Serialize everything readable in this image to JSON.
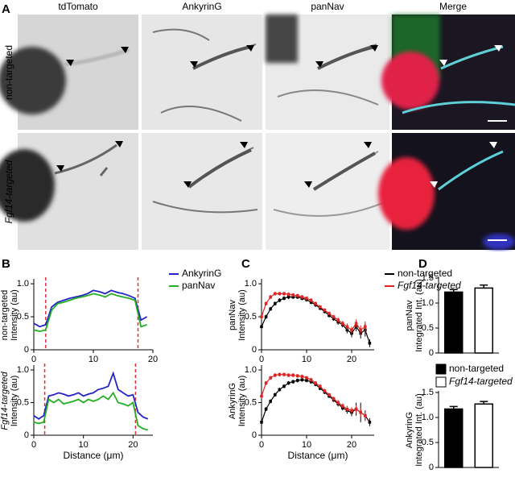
{
  "panels": [
    "A",
    "B",
    "C",
    "D"
  ],
  "panel_a": {
    "columns": [
      {
        "text": "tdTomato",
        "color": "#e8251f"
      },
      {
        "text": "AnkyrinG",
        "color": "#2b2bd6"
      },
      {
        "text": "panNav",
        "color": "#1aa51a"
      },
      {
        "text": "Merge",
        "color": "#000000"
      }
    ],
    "rows": [
      "non-targeted",
      "Fgf14-targeted"
    ]
  },
  "chart_data": [
    {
      "type": "line",
      "ylabel": [
        "non-targeted",
        "Intensity (au)"
      ],
      "xlim": [
        0,
        20
      ],
      "xticks": [
        0,
        10,
        20
      ],
      "ylim": [
        0,
        1.05
      ],
      "yticks": [
        0,
        {
          "value": 0.5,
          "label": "0.5"
        },
        {
          "value": 1,
          "label": "1.0"
        }
      ],
      "legend": true,
      "markers": [
        2,
        17.5
      ],
      "marker_color": "#e03030",
      "x": [
        0,
        1,
        2,
        3,
        4,
        5,
        6,
        7,
        8,
        9,
        10,
        11,
        12,
        13,
        14,
        15,
        16,
        17,
        18,
        19
      ],
      "series": [
        {
          "name": "AnkyrinG",
          "color": "#2323c8",
          "values": [
            0.4,
            0.35,
            0.38,
            0.65,
            0.72,
            0.75,
            0.78,
            0.8,
            0.82,
            0.85,
            0.9,
            0.88,
            0.85,
            0.9,
            0.87,
            0.85,
            0.82,
            0.78,
            0.45,
            0.5
          ]
        },
        {
          "name": "panNav",
          "color": "#22b022",
          "values": [
            0.3,
            0.28,
            0.3,
            0.6,
            0.7,
            0.72,
            0.75,
            0.78,
            0.8,
            0.82,
            0.85,
            0.83,
            0.8,
            0.85,
            0.82,
            0.8,
            0.78,
            0.75,
            0.35,
            0.38
          ]
        }
      ]
    },
    {
      "type": "line",
      "ylabel": [
        "Fgf14-targeted",
        "Intensity (au)"
      ],
      "xlabel": "Distance (μm)",
      "xlim": [
        0,
        24
      ],
      "xticks": [
        0,
        10,
        20
      ],
      "ylim": [
        0,
        1.05
      ],
      "yticks": [
        0,
        {
          "value": 0.5,
          "label": "0.5"
        },
        {
          "value": 1,
          "label": "1.0"
        }
      ],
      "legend": false,
      "markers": [
        2.2,
        20.5
      ],
      "marker_color": "#e03030",
      "x": [
        0,
        1,
        2,
        3,
        4,
        5,
        6,
        7,
        8,
        9,
        10,
        11,
        12,
        13,
        14,
        15,
        16,
        17,
        18,
        19,
        20,
        21,
        22,
        23
      ],
      "series": [
        {
          "name": "AnkyrinG",
          "color": "#2323c8",
          "values": [
            0.3,
            0.25,
            0.3,
            0.6,
            0.62,
            0.65,
            0.63,
            0.6,
            0.62,
            0.65,
            0.6,
            0.63,
            0.65,
            0.7,
            0.72,
            0.75,
            0.95,
            0.7,
            0.65,
            0.6,
            0.62,
            0.35,
            0.28,
            0.25
          ]
        },
        {
          "name": "panNav",
          "color": "#22b022",
          "values": [
            0.2,
            0.18,
            0.2,
            0.55,
            0.5,
            0.55,
            0.48,
            0.5,
            0.52,
            0.55,
            0.5,
            0.55,
            0.52,
            0.55,
            0.6,
            0.55,
            0.65,
            0.5,
            0.48,
            0.45,
            0.5,
            0.15,
            0.1,
            0.08
          ]
        }
      ]
    },
    {
      "type": "line",
      "ylabel": [
        "panNav",
        "Intensity (au)"
      ],
      "xlim": [
        0,
        25
      ],
      "xticks": [
        0,
        10,
        20
      ],
      "ylim": [
        0,
        1.05
      ],
      "yticks": [
        0,
        {
          "value": 0.5,
          "label": "0.5"
        },
        {
          "value": 1,
          "label": "1.0"
        }
      ],
      "legend": true,
      "x": [
        0,
        1,
        2,
        3,
        4,
        5,
        6,
        7,
        8,
        9,
        10,
        11,
        12,
        13,
        14,
        15,
        16,
        17,
        18,
        19,
        20,
        21,
        22,
        23,
        24
      ],
      "series": [
        {
          "name": "non-targeted",
          "color": "#000000",
          "values": [
            0.35,
            0.5,
            0.62,
            0.7,
            0.75,
            0.78,
            0.8,
            0.8,
            0.8,
            0.78,
            0.76,
            0.72,
            0.68,
            0.63,
            0.58,
            0.52,
            0.47,
            0.42,
            0.38,
            0.3,
            0.25,
            0.35,
            0.25,
            0.3,
            0.1
          ],
          "errors": [
            0.03,
            0.03,
            0.03,
            0.03,
            0.03,
            0.03,
            0.03,
            0.03,
            0.03,
            0.03,
            0.03,
            0.03,
            0.03,
            0.03,
            0.03,
            0.03,
            0.03,
            0.04,
            0.04,
            0.05,
            0.06,
            0.07,
            0.08,
            0.1,
            0.06
          ]
        },
        {
          "name": "Fgf14-targeted",
          "color": "#e02424",
          "values": [
            0.5,
            0.7,
            0.8,
            0.85,
            0.85,
            0.85,
            0.84,
            0.83,
            0.82,
            0.8,
            0.78,
            0.75,
            0.7,
            0.65,
            0.6,
            0.55,
            0.5,
            0.45,
            0.4,
            0.35,
            0.3,
            0.4,
            0.3,
            0.35,
            null
          ],
          "errors": [
            0.03,
            0.03,
            0.03,
            0.03,
            0.03,
            0.03,
            0.03,
            0.03,
            0.03,
            0.03,
            0.03,
            0.03,
            0.03,
            0.03,
            0.03,
            0.03,
            0.03,
            0.04,
            0.04,
            0.05,
            0.05,
            0.06,
            0.07,
            0.08,
            null
          ]
        }
      ]
    },
    {
      "type": "line",
      "ylabel": [
        "AnkyrinG",
        "Intensity (au)"
      ],
      "xlabel": "Distance (μm)",
      "xlim": [
        0,
        25
      ],
      "xticks": [
        0,
        10,
        20
      ],
      "ylim": [
        0,
        1.05
      ],
      "yticks": [
        0,
        {
          "value": 0.5,
          "label": "0.5"
        },
        {
          "value": 1,
          "label": "1.0"
        }
      ],
      "legend": false,
      "x": [
        0,
        1,
        2,
        3,
        4,
        5,
        6,
        7,
        8,
        9,
        10,
        11,
        12,
        13,
        14,
        15,
        16,
        17,
        18,
        19,
        20,
        21,
        22,
        23,
        24
      ],
      "series": [
        {
          "name": "non-targeted",
          "color": "#000000",
          "values": [
            0.2,
            0.4,
            0.52,
            0.62,
            0.7,
            0.75,
            0.8,
            0.82,
            0.84,
            0.85,
            0.84,
            0.82,
            0.78,
            0.72,
            0.66,
            0.6,
            0.54,
            0.48,
            0.42,
            0.38,
            0.35,
            0.4,
            0.35,
            0.3,
            0.2
          ],
          "errors": [
            0.03,
            0.03,
            0.03,
            0.03,
            0.03,
            0.03,
            0.03,
            0.03,
            0.03,
            0.03,
            0.03,
            0.03,
            0.03,
            0.03,
            0.03,
            0.03,
            0.03,
            0.04,
            0.04,
            0.05,
            0.06,
            0.1,
            0.15,
            0.08,
            0.06
          ]
        },
        {
          "name": "Fgf14-targeted",
          "color": "#e02424",
          "values": [
            0.6,
            0.8,
            0.88,
            0.92,
            0.93,
            0.93,
            0.92,
            0.92,
            0.91,
            0.9,
            0.88,
            0.85,
            0.8,
            0.75,
            0.68,
            0.62,
            0.56,
            0.5,
            0.45,
            0.4,
            0.38,
            0.4,
            0.35,
            0.3,
            null
          ],
          "errors": [
            0.03,
            0.03,
            0.03,
            0.03,
            0.03,
            0.03,
            0.03,
            0.03,
            0.03,
            0.03,
            0.03,
            0.03,
            0.03,
            0.03,
            0.03,
            0.03,
            0.03,
            0.04,
            0.04,
            0.05,
            0.05,
            0.06,
            0.07,
            0.08,
            null
          ]
        }
      ]
    },
    {
      "type": "bar",
      "ylabel": [
        "panNav",
        "Integrated Int. (au)"
      ],
      "ylim": [
        0,
        1.5
      ],
      "yticks": [
        0,
        {
          "value": 0.5,
          "label": "0.5"
        },
        {
          "value": 1,
          "label": "1.0"
        },
        {
          "value": 1.5,
          "label": "1.5"
        }
      ],
      "legend": true,
      "categories": [
        "non-targeted",
        "Fgf14-targeted"
      ],
      "colors": [
        "#000000",
        "#ffffff"
      ],
      "values": [
        1.22,
        1.3
      ],
      "errors": [
        0.05,
        0.06
      ]
    },
    {
      "type": "bar",
      "ylabel": [
        "AnkyrinG",
        "Integrated Int. (au)"
      ],
      "ylim": [
        0,
        1.5
      ],
      "yticks": [
        0,
        {
          "value": 0.5,
          "label": "0.5"
        },
        {
          "value": 1,
          "label": "1.0"
        },
        {
          "value": 1.5,
          "label": "1.5"
        }
      ],
      "legend": false,
      "categories": [
        "non-targeted",
        "Fgf14-targeted"
      ],
      "colors": [
        "#000000",
        "#ffffff"
      ],
      "values": [
        1.17,
        1.27
      ],
      "errors": [
        0.05,
        0.05
      ]
    }
  ]
}
